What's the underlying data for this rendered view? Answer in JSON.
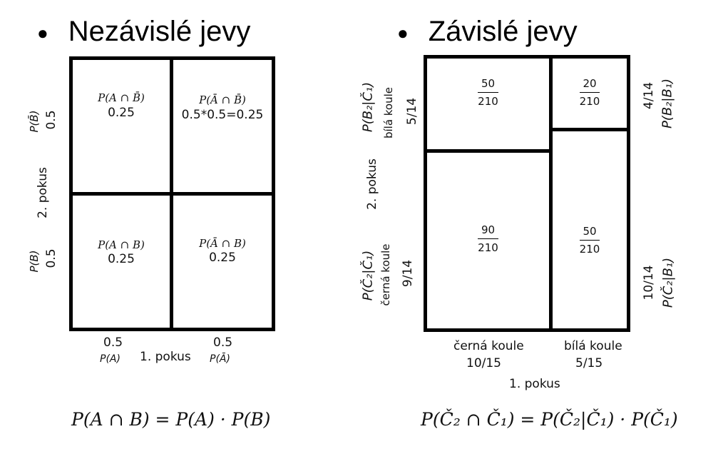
{
  "left": {
    "heading": "Nezávislé jevy",
    "cells": {
      "tl": {
        "formula": "P(A ∩ B̄)",
        "value": "0.25"
      },
      "tr": {
        "formula": "P(Ā ∩ B̄)",
        "value": "0.5*0.5=0.25"
      },
      "bl": {
        "formula": "P(A ∩ B)",
        "value": "0.25"
      },
      "br": {
        "formula": "P(Ā ∩ B)",
        "value": "0.25"
      }
    },
    "side": {
      "top_formula": "P(B̄)",
      "top_value": "0.5",
      "axis": "2. pokus",
      "bottom_formula": "P(B)",
      "bottom_value": "0.5"
    },
    "bottom": {
      "left_value": "0.5",
      "left_formula": "P(A)",
      "axis": "1. pokus",
      "right_value": "0.5",
      "right_formula": "P(Ā)"
    },
    "equation": "P(A ∩ B) = P(A) · P(B)"
  },
  "right": {
    "heading": "Závislé jevy",
    "cells": {
      "tl": {
        "num": "50",
        "den": "210"
      },
      "tr": {
        "num": "20",
        "den": "210"
      },
      "bl": {
        "num": "90",
        "den": "210"
      },
      "br": {
        "num": "50",
        "den": "210"
      }
    },
    "left_side": {
      "top_formula": "P(B₂|Č₁)",
      "top_label": "bílá koule",
      "top_value": "5/14",
      "axis": "2. pokus",
      "bottom_formula": "P(Č₂|Č₁)",
      "bottom_label": "černá koule",
      "bottom_value": "9/14"
    },
    "right_side": {
      "top_value": "4/14",
      "top_formula": "P(B₂|B₁)",
      "bottom_value": "10/14",
      "bottom_formula": "P(Č₂|B₁)"
    },
    "bottom": {
      "left_label": "černá koule",
      "left_value": "10/15",
      "right_label": "bílá koule",
      "right_value": "5/15",
      "axis": "1. pokus"
    },
    "equation": "P(Č₂ ∩ Č₁) = P(Č₂|Č₁) · P(Č₁)"
  }
}
